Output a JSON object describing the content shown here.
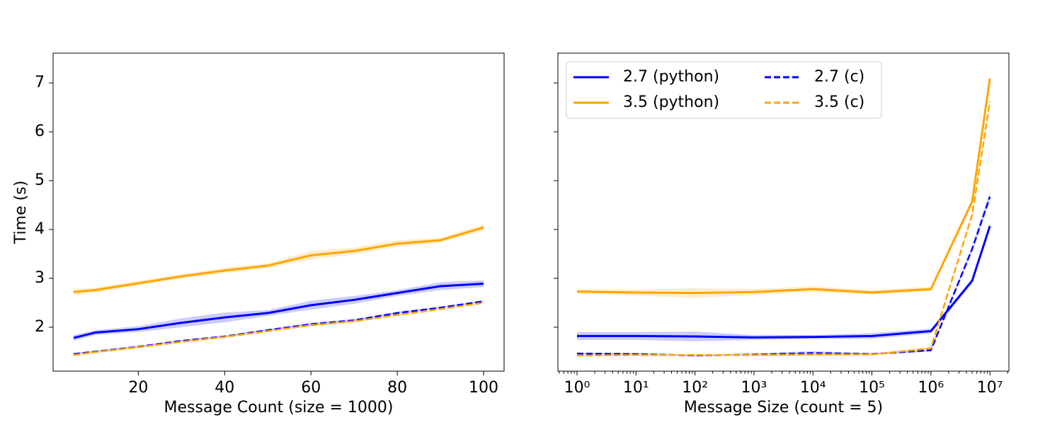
{
  "chart_data": [
    {
      "type": "line",
      "xlabel": "Message Count (size = 1000)",
      "ylabel": "Time (s)",
      "x": [
        5,
        10,
        20,
        30,
        40,
        50,
        60,
        70,
        80,
        90,
        100
      ],
      "xlim": [
        0.25,
        104.75
      ],
      "xticks": [
        20,
        40,
        60,
        80,
        100
      ],
      "ylim": [
        1.1,
        7.61
      ],
      "yticks": [
        2,
        3,
        4,
        5,
        6,
        7
      ],
      "show_ytick_labels": true,
      "series": [
        {
          "name": "2.7 (python)",
          "color": "#0000ff",
          "dashed": false,
          "values": [
            1.78,
            1.89,
            1.96,
            2.09,
            2.2,
            2.29,
            2.45,
            2.56,
            2.7,
            2.84,
            2.89
          ],
          "errors": [
            0.06,
            0.05,
            0.06,
            0.09,
            0.1,
            0.06,
            0.09,
            0.08,
            0.06,
            0.08,
            0.07
          ]
        },
        {
          "name": "3.5 (python)",
          "color": "#ffa500",
          "dashed": false,
          "values": [
            2.72,
            2.76,
            2.9,
            3.04,
            3.16,
            3.26,
            3.47,
            3.56,
            3.71,
            3.78,
            4.04
          ],
          "errors": [
            0.07,
            0.05,
            0.05,
            0.05,
            0.06,
            0.05,
            0.09,
            0.07,
            0.07,
            0.05,
            0.07
          ]
        },
        {
          "name": "2.7 (c)",
          "color": "#0000ff",
          "dashed": true,
          "values": [
            1.45,
            1.5,
            1.6,
            1.72,
            1.81,
            1.94,
            2.06,
            2.14,
            2.29,
            2.4,
            2.53
          ],
          "errors": [
            0.02,
            0.02,
            0.02,
            0.02,
            0.02,
            0.02,
            0.03,
            0.03,
            0.03,
            0.02,
            0.02
          ]
        },
        {
          "name": "3.5 (c)",
          "color": "#ffa500",
          "dashed": true,
          "values": [
            1.43,
            1.49,
            1.59,
            1.7,
            1.8,
            1.92,
            2.04,
            2.12,
            2.25,
            2.37,
            2.5
          ],
          "errors": [
            0.02,
            0.02,
            0.02,
            0.02,
            0.02,
            0.02,
            0.02,
            0.02,
            0.02,
            0.02,
            0.02
          ]
        }
      ]
    },
    {
      "type": "line",
      "xlabel": "Message Size (count = 5)",
      "log_x": true,
      "x": [
        1,
        10,
        100,
        1000,
        10000,
        100000,
        1000000,
        5000000,
        10000000
      ],
      "xlim": [
        0.474,
        21000000
      ],
      "xticks": [
        {
          "value": 1,
          "label": "10⁰"
        },
        {
          "value": 10,
          "label": "10¹"
        },
        {
          "value": 100,
          "label": "10²"
        },
        {
          "value": 1000,
          "label": "10³"
        },
        {
          "value": 10000,
          "label": "10⁴"
        },
        {
          "value": 100000,
          "label": "10⁵"
        },
        {
          "value": 1000000,
          "label": "10⁶"
        },
        {
          "value": 10000000,
          "label": "10⁷"
        }
      ],
      "ylim": [
        1.1,
        7.61
      ],
      "yticks": [
        2,
        3,
        4,
        5,
        6,
        7
      ],
      "show_ytick_labels": false,
      "legend": "upper left",
      "legend_columns": 2,
      "series": [
        {
          "name": "2.7 (python)",
          "color": "#0000ff",
          "dashed": false,
          "values": [
            1.82,
            1.82,
            1.81,
            1.79,
            1.8,
            1.82,
            1.92,
            2.95,
            4.07
          ],
          "errors": [
            0.08,
            0.08,
            0.1,
            0.05,
            0.04,
            0.06,
            0.05,
            0.05,
            0.06
          ]
        },
        {
          "name": "3.5 (python)",
          "color": "#ffa500",
          "dashed": false,
          "values": [
            2.73,
            2.71,
            2.7,
            2.72,
            2.78,
            2.71,
            2.78,
            4.57,
            7.09
          ],
          "errors": [
            0.05,
            0.06,
            0.1,
            0.06,
            0.06,
            0.05,
            0.05,
            0.06,
            0.1
          ]
        },
        {
          "name": "2.7 (c)",
          "color": "#0000ff",
          "dashed": true,
          "values": [
            1.46,
            1.45,
            1.42,
            1.44,
            1.47,
            1.45,
            1.53,
            3.6,
            4.67
          ],
          "errors": [
            0.02,
            0.02,
            0.02,
            0.02,
            0.04,
            0.02,
            0.03,
            0.05,
            0.1
          ]
        },
        {
          "name": "3.5 (c)",
          "color": "#ffa500",
          "dashed": true,
          "values": [
            1.42,
            1.43,
            1.43,
            1.43,
            1.44,
            1.44,
            1.57,
            4.3,
            6.62
          ],
          "errors": [
            0.02,
            0.02,
            0.02,
            0.02,
            0.03,
            0.02,
            0.03,
            0.05,
            0.1
          ]
        }
      ]
    }
  ]
}
